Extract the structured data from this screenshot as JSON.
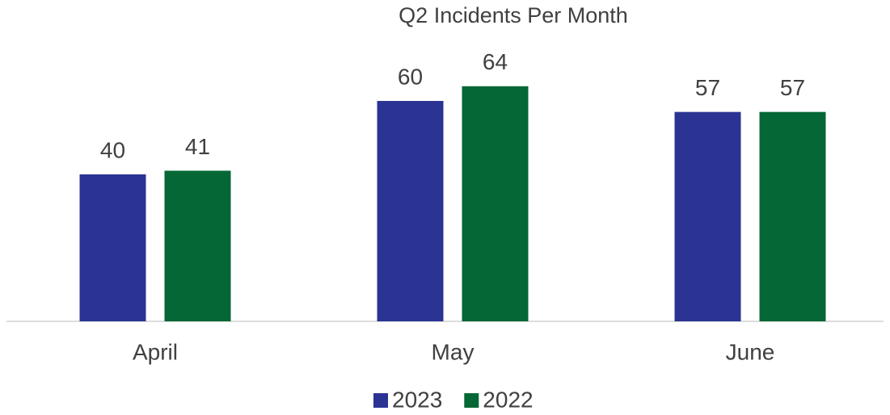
{
  "chart_data": {
    "type": "bar",
    "title": "Q2 Incidents Per Month",
    "categories": [
      "April",
      "May",
      "June"
    ],
    "series": [
      {
        "name": "2023",
        "color": "#2b3393",
        "values": [
          40,
          60,
          57
        ]
      },
      {
        "name": "2022",
        "color": "#046735",
        "values": [
          41,
          64,
          57
        ]
      }
    ],
    "ylim": [
      0,
      70
    ],
    "legend": "bottom"
  }
}
